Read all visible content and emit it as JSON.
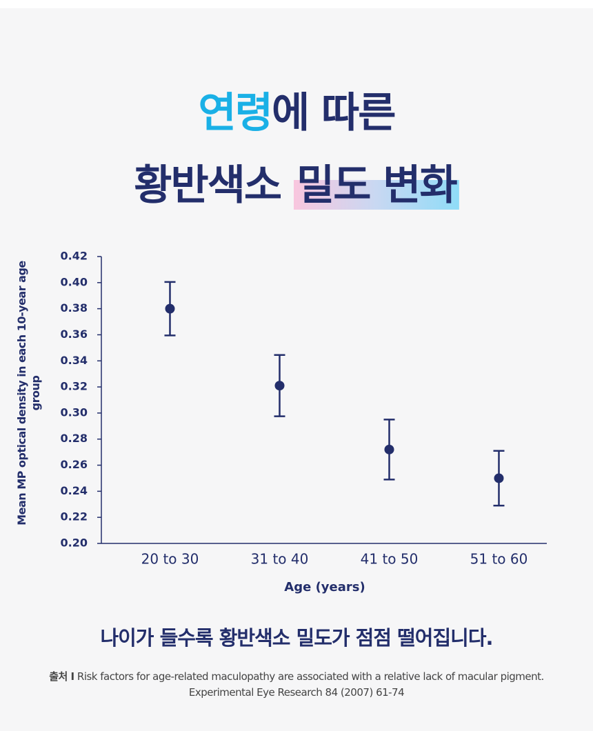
{
  "header": {
    "title_line1_accent": "연령",
    "title_line1_rest": "에 따른",
    "title_line2_plain": "황반색소 ",
    "title_line2_highlight": "밀도 변화"
  },
  "chart_data": {
    "type": "errorbar",
    "x_label": "Age (years)",
    "y_label": "Mean MP optical density in each 10-year age group",
    "categories": [
      "20 to 30",
      "31 to 40",
      "41 to 50",
      "51 to 60"
    ],
    "values": [
      0.38,
      0.321,
      0.272,
      0.25
    ],
    "errors": [
      0.0205,
      0.0235,
      0.023,
      0.021
    ],
    "color": "#232e6b",
    "ylim": [
      0.2,
      0.42
    ],
    "yticks": [
      {
        "value": 0.2,
        "label": "0.20"
      },
      0.22,
      0.24,
      0.26,
      0.28,
      {
        "value": 0.3,
        "label": "0.30"
      },
      0.32,
      0.34,
      0.36,
      0.38,
      {
        "value": 0.4,
        "label": "0.40"
      },
      0.42
    ],
    "grid": false
  },
  "footer": {
    "caption": "나이가 들수록 황반색소 밀도가 점점 떨어집니다.",
    "source_label": "출처 I",
    "source_line1": "Risk factors for age-related maculopathy are associated with a relative lack of macular pigment.",
    "source_line2": "Experimental Eye Research 84 (2007) 61-74"
  }
}
